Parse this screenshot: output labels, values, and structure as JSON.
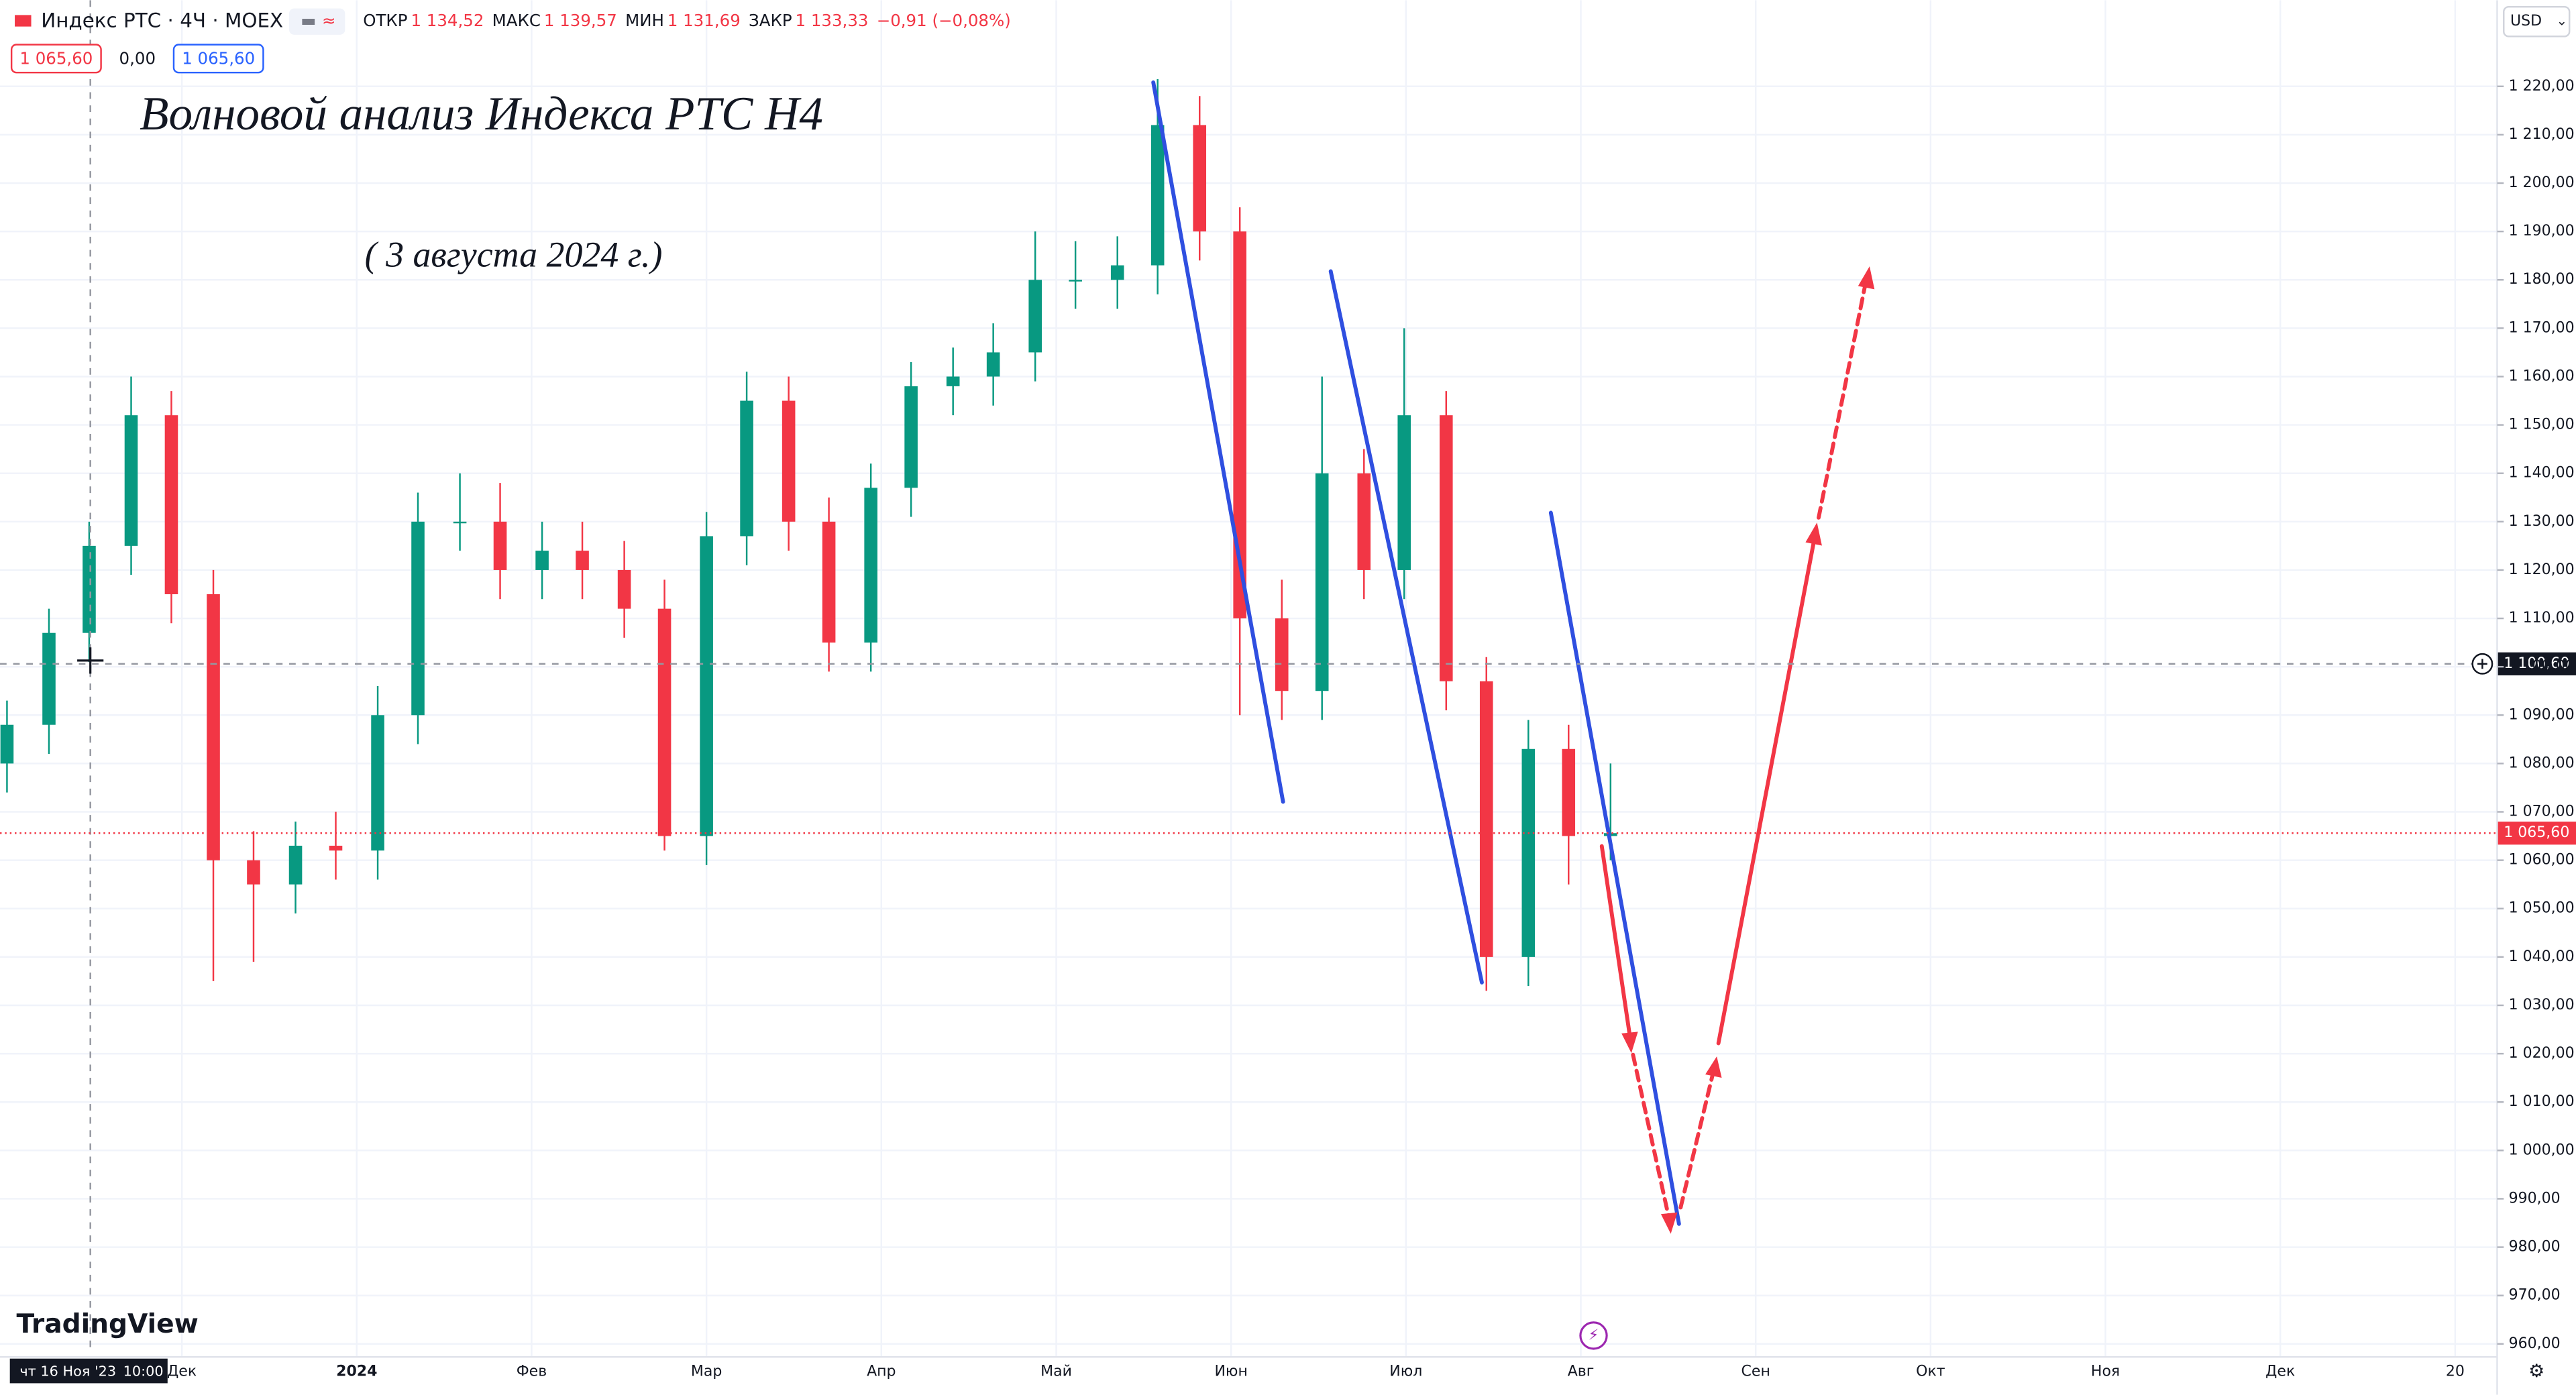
{
  "header": {
    "symbol": "Индекс РТС · 4Ч · MOEX",
    "ohlc": [
      {
        "key": "ОТКР",
        "value": "1 134,52"
      },
      {
        "key": "МАКС",
        "value": "1 139,57"
      },
      {
        "key": "МИН",
        "value": "1 131,69"
      },
      {
        "key": "ЗАКР",
        "value": "1 133,33"
      }
    ],
    "change": "−0,91 (−0,08%)",
    "price_boxes": [
      "1 065,60",
      "0,00",
      "1 065,60"
    ],
    "currency": "USD",
    "brand": "TradingView"
  },
  "chart_data": {
    "type": "candlestick",
    "title": "Волновой анализ Индекса РТС Н4",
    "subtitle": "( 3 августа 2024 г.)",
    "x": [
      11.0,
      11.24,
      11.47,
      11.71,
      11.94,
      12.18,
      12.41,
      12.65,
      12.88,
      13.12,
      13.35,
      13.59,
      13.82,
      14.06,
      14.29,
      14.53,
      14.76,
      15.0,
      15.23,
      15.47,
      15.7,
      15.94,
      16.17,
      16.41,
      16.64,
      16.88,
      17.11,
      17.35,
      17.58,
      17.82,
      18.05,
      18.29,
      18.52,
      18.76,
      18.99,
      19.23,
      19.46,
      19.7,
      19.93,
      20.17
    ],
    "open": [
      1080,
      1088,
      1107,
      1125,
      1152,
      1115,
      1060,
      1055,
      1063,
      1062,
      1090,
      1130,
      1130,
      1120,
      1124,
      1120,
      1112,
      1065,
      1127,
      1155,
      1130,
      1105,
      1137,
      1158,
      1160,
      1165,
      1180,
      1180,
      1183,
      1212,
      1190,
      1110,
      1095,
      1140,
      1120,
      1152,
      1097,
      1040,
      1083,
      1065
    ],
    "high": [
      1093,
      1112,
      1130,
      1160,
      1157,
      1120,
      1066,
      1068,
      1070,
      1096,
      1136,
      1140,
      1138,
      1130,
      1130,
      1126,
      1118,
      1132,
      1161,
      1160,
      1135,
      1142,
      1163,
      1166,
      1171,
      1190,
      1188,
      1189,
      1221.5,
      1218,
      1195,
      1118,
      1160,
      1145,
      1170,
      1157,
      1102,
      1089,
      1088,
      1080
    ],
    "low": [
      1074,
      1082,
      1101,
      1119,
      1109,
      1035,
      1039,
      1049,
      1056,
      1056,
      1084,
      1124,
      1114,
      1114,
      1114,
      1106,
      1062,
      1059,
      1121,
      1124,
      1099,
      1099,
      1131,
      1152,
      1154,
      1159,
      1174,
      1174,
      1177,
      1184,
      1090,
      1089,
      1089,
      1114,
      1114,
      1091,
      1033,
      1034,
      1055,
      1060
    ],
    "close": [
      1088,
      1107,
      1125,
      1152,
      1115,
      1060,
      1055,
      1063,
      1062,
      1090,
      1130,
      1130,
      1120,
      1124,
      1120,
      1112,
      1065,
      1127,
      1155,
      1130,
      1105,
      1137,
      1158,
      1160,
      1165,
      1180,
      1180,
      1183,
      1212,
      1190,
      1110,
      1095,
      1140,
      1120,
      1152,
      1097,
      1040,
      1083,
      1065,
      1065.6
    ],
    "up_color": "#089981",
    "down_color": "#f23645",
    "xlim": [
      10.96,
      25.24
    ],
    "ylim": [
      1237.8,
      957.3
    ],
    "xticks": [
      {
        "value": 12,
        "label": "Дек"
      },
      {
        "value": 13,
        "label": "2024"
      },
      {
        "value": 14,
        "label": "Фев"
      },
      {
        "value": 15,
        "label": "Мар"
      },
      {
        "value": 16,
        "label": "Апр"
      },
      {
        "value": 17,
        "label": "Май"
      },
      {
        "value": 18,
        "label": "Июн"
      },
      {
        "value": 19,
        "label": "Июл"
      },
      {
        "value": 20,
        "label": "Авг"
      },
      {
        "value": 21,
        "label": "Сен"
      },
      {
        "value": 22,
        "label": "Окт"
      },
      {
        "value": 23,
        "label": "Ноя"
      },
      {
        "value": 24,
        "label": "Дек"
      },
      {
        "value": 25,
        "label": "20"
      }
    ],
    "yticks": [
      {
        "value": 960,
        "label": "960,00"
      },
      {
        "value": 970,
        "label": "970,00"
      },
      {
        "value": 980,
        "label": "980,00"
      },
      {
        "value": 990,
        "label": "990,00"
      },
      {
        "value": 1000,
        "label": "1 000,00"
      },
      {
        "value": 1010,
        "label": "1 010,00"
      },
      {
        "value": 1020,
        "label": "1 020,00"
      },
      {
        "value": 1030,
        "label": "1 030,00"
      },
      {
        "value": 1040,
        "label": "1 040,00"
      },
      {
        "value": 1050,
        "label": "1 050,00"
      },
      {
        "value": 1060,
        "label": "1 060,00"
      },
      {
        "value": 1070,
        "label": "1 070,00"
      },
      {
        "value": 1080,
        "label": "1 080,00"
      },
      {
        "value": 1090,
        "label": "1 090,00"
      },
      {
        "value": 1100,
        "label": "1 100,00"
      },
      {
        "value": 1110,
        "label": "1 110,00"
      },
      {
        "value": 1120,
        "label": "1 120,00"
      },
      {
        "value": 1130,
        "label": "1 130,00"
      },
      {
        "value": 1140,
        "label": "1 140,00"
      },
      {
        "value": 1150,
        "label": "1 150,00"
      },
      {
        "value": 1160,
        "label": "1 160,00"
      },
      {
        "value": 1170,
        "label": "1 170,00"
      },
      {
        "value": 1180,
        "label": "1 180,00"
      },
      {
        "value": 1190,
        "label": "1 190,00"
      },
      {
        "value": 1200,
        "label": "1 200,00"
      },
      {
        "value": 1210,
        "label": "1 210,00"
      },
      {
        "value": 1220,
        "label": "1 220,00"
      }
    ],
    "grid": true,
    "last_price": {
      "value": 1065.6,
      "label": "1 065,60"
    },
    "crosshair": {
      "value": 1100.6,
      "label": "1 100,60",
      "time_label": "чт 16 Ноя '23",
      "clock": "10:00"
    }
  }
}
